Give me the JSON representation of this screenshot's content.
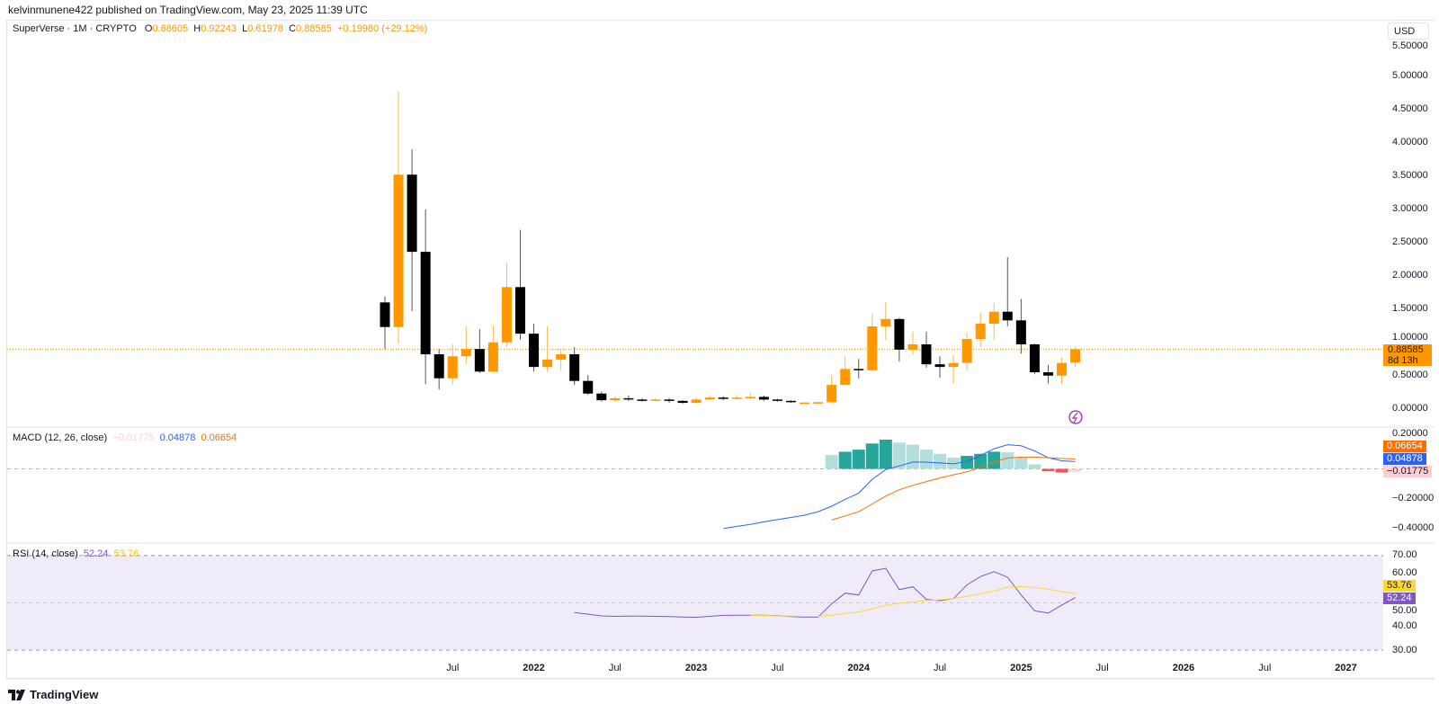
{
  "publish_line": "kelvinmunene422 published on TradingView.com, May 23, 2025 11:39 UTC",
  "symbol": {
    "name": "SuperVerse · 1M · CRYPTO",
    "o_label": "O",
    "o": "0.68605",
    "h_label": "H",
    "h": "0.92243",
    "l_label": "L",
    "l": "0.61978",
    "c_label": "C",
    "c": "0.88585",
    "change": "+0.19980 (+29.12%)"
  },
  "currency_button": "USD",
  "price_tag": {
    "value": "0.88585",
    "countdown": "8d 13h"
  },
  "macd_legend": {
    "title": "MACD (12, 26, close)",
    "hist": "−0.01775",
    "macd": "0.04878",
    "signal": "0.06654"
  },
  "rsi_legend": {
    "title": "RSI (14, close)",
    "rsi": "52.24",
    "ma": "53.76"
  },
  "macd_tags": {
    "signal": "0.06654",
    "macd": "0.04878",
    "hist": "−0.01775"
  },
  "rsi_tags": {
    "ma": "53.76",
    "rsi": "52.24"
  },
  "logo_text": "TradingView",
  "colors": {
    "up": "#ff9800",
    "down": "#000000",
    "macd": "#2962ff",
    "signal": "#ff6d00",
    "hist_up_strong": "#26a69a",
    "hist_up_weak": "#b2dfdb",
    "hist_down_strong": "#ff5252",
    "hist_down_weak": "#ffcdd2",
    "rsi": "#7e57c2",
    "rsi_ma": "#fdd835",
    "rsi_band": "#f0ebf8"
  },
  "chart_data": [
    {
      "type": "candlestick",
      "title": "SuperVerse · 1M · CRYPTO",
      "x": [
        "2021-02",
        "2021-03",
        "2021-04",
        "2021-05",
        "2021-06",
        "2021-07",
        "2021-08",
        "2021-09",
        "2021-10",
        "2021-11",
        "2021-12",
        "2022-01",
        "2022-02",
        "2022-03",
        "2022-04",
        "2022-05",
        "2022-06",
        "2022-07",
        "2022-08",
        "2022-09",
        "2022-10",
        "2022-11",
        "2022-12",
        "2023-01",
        "2023-02",
        "2023-03",
        "2023-04",
        "2023-05",
        "2023-06",
        "2023-07",
        "2023-08",
        "2023-09",
        "2023-10",
        "2023-11",
        "2023-12",
        "2024-01",
        "2024-02",
        "2024-03",
        "2024-04",
        "2024-05",
        "2024-06",
        "2024-07",
        "2024-08",
        "2024-09",
        "2024-10",
        "2024-11",
        "2024-12",
        "2025-01",
        "2025-02",
        "2025-03",
        "2025-04",
        "2025-05"
      ],
      "ohlc": [
        [
          1.59,
          1.68,
          0.89,
          1.22
        ],
        [
          1.22,
          4.76,
          0.97,
          3.51
        ],
        [
          3.51,
          3.89,
          1.46,
          2.35
        ],
        [
          2.35,
          2.99,
          0.36,
          0.81
        ],
        [
          0.81,
          0.89,
          0.28,
          0.45
        ],
        [
          0.45,
          0.96,
          0.36,
          0.78
        ],
        [
          0.78,
          1.23,
          0.66,
          0.89
        ],
        [
          0.89,
          1.19,
          0.53,
          0.55
        ],
        [
          0.55,
          1.24,
          0.53,
          0.99
        ],
        [
          0.99,
          2.19,
          0.93,
          1.82
        ],
        [
          1.82,
          2.68,
          1.03,
          1.12
        ],
        [
          1.12,
          1.27,
          0.55,
          0.62
        ],
        [
          0.62,
          1.23,
          0.55,
          0.73
        ],
        [
          0.73,
          0.89,
          0.57,
          0.81
        ],
        [
          0.81,
          0.92,
          0.35,
          0.41
        ],
        [
          0.41,
          0.5,
          0.2,
          0.22
        ],
        [
          0.22,
          0.25,
          0.1,
          0.12
        ],
        [
          0.12,
          0.18,
          0.1,
          0.15
        ],
        [
          0.15,
          0.19,
          0.11,
          0.13
        ],
        [
          0.13,
          0.15,
          0.1,
          0.12
        ],
        [
          0.12,
          0.15,
          0.11,
          0.13
        ],
        [
          0.13,
          0.15,
          0.08,
          0.11
        ],
        [
          0.11,
          0.12,
          0.07,
          0.08
        ],
        [
          0.08,
          0.16,
          0.07,
          0.13
        ],
        [
          0.13,
          0.2,
          0.12,
          0.16
        ],
        [
          0.16,
          0.18,
          0.12,
          0.15
        ],
        [
          0.15,
          0.2,
          0.13,
          0.16
        ],
        [
          0.16,
          0.22,
          0.14,
          0.17
        ],
        [
          0.17,
          0.19,
          0.11,
          0.13
        ],
        [
          0.13,
          0.14,
          0.1,
          0.11
        ],
        [
          0.11,
          0.12,
          0.08,
          0.09
        ],
        [
          0.08,
          0.09,
          0.07,
          0.085
        ],
        [
          0.085,
          0.1,
          0.07,
          0.09
        ],
        [
          0.09,
          0.5,
          0.07,
          0.35
        ],
        [
          0.35,
          0.78,
          0.35,
          0.59
        ],
        [
          0.59,
          0.74,
          0.45,
          0.57
        ],
        [
          0.57,
          1.42,
          0.55,
          1.23
        ],
        [
          1.23,
          1.59,
          1.03,
          1.34
        ],
        [
          1.34,
          1.36,
          0.7,
          0.88
        ],
        [
          0.88,
          1.15,
          0.81,
          0.96
        ],
        [
          0.96,
          1.15,
          0.61,
          0.66
        ],
        [
          0.66,
          0.78,
          0.46,
          0.62
        ],
        [
          0.62,
          0.8,
          0.37,
          0.68
        ],
        [
          0.68,
          1.14,
          0.57,
          1.04
        ],
        [
          1.04,
          1.43,
          0.92,
          1.27
        ],
        [
          1.27,
          1.58,
          1.03,
          1.45
        ],
        [
          1.45,
          2.27,
          1.23,
          1.32
        ],
        [
          1.32,
          1.64,
          0.82,
          0.96
        ],
        [
          0.96,
          0.97,
          0.51,
          0.54
        ],
        [
          0.54,
          0.65,
          0.37,
          0.49
        ],
        [
          0.49,
          0.76,
          0.37,
          0.68
        ],
        [
          0.68605,
          0.92243,
          0.61978,
          0.88585
        ]
      ],
      "last_price": 0.88585,
      "y_ticks": [
        "5.50000",
        "5.00000",
        "4.50000",
        "4.00000",
        "3.50000",
        "3.00000",
        "2.50000",
        "2.00000",
        "1.50000",
        "1.00000",
        "0.50000",
        "0.00000"
      ],
      "ylim": [
        0,
        5.5
      ],
      "x_ticks": [
        {
          "month": "2021-07",
          "label": "Jul"
        },
        {
          "month": "2022-01",
          "label": "2022"
        },
        {
          "month": "2022-07",
          "label": "Jul"
        },
        {
          "month": "2023-01",
          "label": "2023"
        },
        {
          "month": "2023-07",
          "label": "Jul"
        },
        {
          "month": "2024-01",
          "label": "2024"
        },
        {
          "month": "2024-07",
          "label": "Jul"
        },
        {
          "month": "2025-01",
          "label": "2025"
        },
        {
          "month": "2025-07",
          "label": "Jul"
        },
        {
          "month": "2026-01",
          "label": "2026"
        },
        {
          "month": "2026-07",
          "label": "Jul"
        },
        {
          "month": "2027-01",
          "label": "2027"
        }
      ]
    },
    {
      "type": "line",
      "title": "MACD (12, 26, close)",
      "start": "2023-03",
      "macd": [
        -0.4,
        -0.385,
        -0.372,
        -0.355,
        -0.34,
        -0.325,
        -0.31,
        -0.287,
        -0.25,
        -0.204,
        -0.162,
        -0.07,
        -0.004,
        0.02,
        0.046,
        0.045,
        0.04,
        0.034,
        0.05,
        0.09,
        0.135,
        0.162,
        0.155,
        0.12,
        0.075,
        0.054,
        0.04878
      ],
      "signal_start": "2023-11",
      "signal": [
        -0.343,
        -0.315,
        -0.287,
        -0.235,
        -0.182,
        -0.14,
        -0.11,
        -0.085,
        -0.06,
        -0.04,
        -0.02,
        0.01,
        0.045,
        0.072,
        0.079,
        0.079,
        0.075,
        0.07,
        0.06654
      ],
      "histogram_start": "2023-11",
      "histogram": [
        0.093,
        0.115,
        0.129,
        0.17,
        0.196,
        0.176,
        0.162,
        0.129,
        0.101,
        0.075,
        0.087,
        0.101,
        0.115,
        0.111,
        0.075,
        0.03,
        -0.016,
        -0.024,
        -0.01775
      ],
      "y_ticks": [
        "0.20000",
        "−0.20000",
        "−0.40000"
      ],
      "ylim": [
        -0.45,
        0.22
      ]
    },
    {
      "type": "line",
      "title": "RSI (14, close)",
      "start": "2022-04",
      "rsi": [
        45.9,
        45.2,
        44.5,
        44.3,
        44.4,
        44.4,
        44.3,
        44.2,
        44.0,
        43.9,
        44.3,
        44.7,
        44.8,
        44.8,
        44.8,
        44.6,
        44.2,
        44.0,
        44.0,
        49.6,
        54.1,
        53.3,
        63.5,
        64.6,
        55.6,
        56.8,
        51.5,
        50.9,
        51.8,
        57.6,
        61.1,
        63.2,
        60.8,
        53.4,
        46.6,
        45.7,
        49.0,
        52.24
      ],
      "ma_start": "2023-05",
      "ma": [
        44.8,
        44.7,
        44.5,
        44.4,
        44.3,
        44.3,
        44.8,
        45.5,
        46.1,
        47.5,
        49.0,
        49.8,
        50.4,
        51.0,
        51.3,
        51.8,
        52.8,
        53.8,
        55.0,
        56.6,
        56.9,
        56.5,
        55.8,
        54.8,
        53.76
      ],
      "y_ticks": [
        "70.00",
        "60.00",
        "50.00",
        "40.00",
        "30.00"
      ],
      "levels": [
        70,
        50,
        30
      ],
      "ylim": [
        30,
        70
      ]
    }
  ]
}
